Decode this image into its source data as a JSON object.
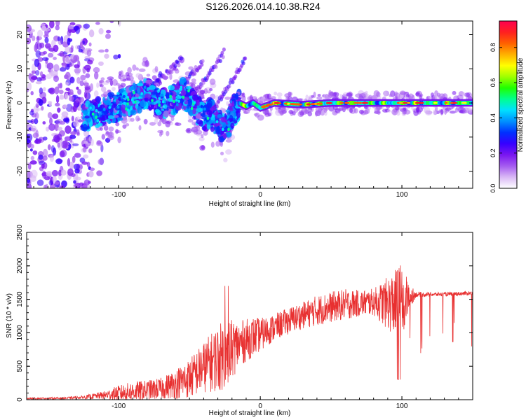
{
  "title": "S126.2026.014.10.38.R24",
  "chart_data": [
    {
      "type": "heatmap",
      "xlabel": "Height of straight line (km)",
      "ylabel": "Frequency (Hz)",
      "xlim": [
        -165,
        150
      ],
      "ylim": [
        -25,
        24
      ],
      "x_ticks": [
        -100,
        0,
        100
      ],
      "y_ticks": [
        -20,
        -10,
        0,
        10,
        20
      ],
      "colorbar": {
        "label": "Normalized spectral amplitude",
        "range": [
          0,
          0.95
        ],
        "ticks": [
          0.0,
          0.2,
          0.4,
          0.6,
          0.8
        ],
        "tick_labels": [
          "0.0",
          "0.2",
          "0.4",
          "0.6",
          "0.8"
        ],
        "colormap": [
          "#ffffff",
          "#d9b8f5",
          "#a55cf0",
          "#7a16f0",
          "#3600ff",
          "#0030ff",
          "#0090ff",
          "#00e0ff",
          "#00ff90",
          "#20ff00",
          "#a0ff00",
          "#ffff00",
          "#ffb000",
          "#ff6000",
          "#ff2020",
          "#ff0050"
        ]
      },
      "description_points": {
        "signal_track": [
          [
            -125,
            -4
          ],
          [
            -110,
            -2
          ],
          [
            -100,
            -1
          ],
          [
            -90,
            1
          ],
          [
            -80,
            3
          ],
          [
            -70,
            0
          ],
          [
            -60,
            1
          ],
          [
            -55,
            3
          ],
          [
            -50,
            1
          ],
          [
            -45,
            -2
          ],
          [
            -40,
            -4
          ],
          [
            -35,
            -3
          ],
          [
            -30,
            -6
          ],
          [
            -25,
            -8
          ],
          [
            -20,
            -3
          ],
          [
            -15,
            0
          ],
          [
            -10,
            -1
          ],
          [
            -5,
            0
          ],
          [
            0,
            -1.5
          ],
          [
            10,
            0
          ],
          [
            30,
            -0.5
          ],
          [
            50,
            0
          ],
          [
            70,
            0
          ],
          [
            90,
            0
          ],
          [
            110,
            0
          ],
          [
            130,
            0
          ],
          [
            150,
            0
          ]
        ]
      }
    },
    {
      "type": "line",
      "xlabel": "Height of straight line (km)",
      "ylabel": "SNR (10 * v/v)",
      "xlim": [
        -165,
        150
      ],
      "ylim": [
        0,
        2500
      ],
      "x_ticks": [
        -100,
        0,
        100
      ],
      "y_ticks": [
        0,
        500,
        1000,
        1500,
        2000,
        2500
      ],
      "series_color": "#e83030",
      "envelope": {
        "x": [
          -165,
          -140,
          -125,
          -110,
          -100,
          -90,
          -80,
          -70,
          -60,
          -50,
          -40,
          -30,
          -25,
          -20,
          -15,
          -10,
          -5,
          0,
          10,
          20,
          30,
          40,
          50,
          60,
          70,
          80,
          90,
          95,
          100,
          105,
          110,
          120,
          130,
          140,
          150
        ],
        "base": [
          20,
          25,
          40,
          80,
          120,
          150,
          170,
          200,
          280,
          380,
          560,
          720,
          780,
          850,
          900,
          950,
          1000,
          1020,
          1120,
          1220,
          1300,
          1380,
          1430,
          1470,
          1480,
          1500,
          1520,
          1540,
          1560,
          1580,
          1580,
          1580,
          1580,
          1590,
          1600
        ],
        "spread": [
          10,
          15,
          25,
          60,
          120,
          150,
          150,
          160,
          220,
          300,
          380,
          500,
          520,
          450,
          350,
          320,
          300,
          250,
          200,
          200,
          200,
          230,
          230,
          230,
          200,
          200,
          400,
          500,
          600,
          200,
          40,
          30,
          30,
          30,
          30
        ]
      }
    }
  ]
}
